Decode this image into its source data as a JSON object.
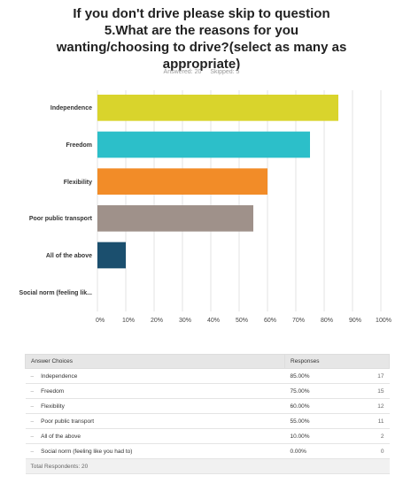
{
  "chart_data": {
    "type": "bar",
    "orientation": "horizontal",
    "title": "If you don't drive please skip to question 5.What are the reasons for you wanting/choosing to drive?(select as many as appropriate)",
    "answered": "Answered: 20",
    "skipped": "Skipped: 5",
    "categories": [
      "Independence",
      "Freedom",
      "Flexibility",
      "Poor public transport",
      "All of the above",
      "Social norm (feeling lik..."
    ],
    "values": [
      85,
      75,
      60,
      55,
      10,
      0
    ],
    "colors": [
      "#d9d42c",
      "#2cbfc9",
      "#f28c28",
      "#9f918a",
      "#1b4f6e",
      "#888888"
    ],
    "xlim": [
      0,
      100
    ],
    "xticks": [
      {
        "value": 0,
        "label": "0%"
      },
      {
        "value": 10,
        "label": "10%"
      },
      {
        "value": 20,
        "label": "20%"
      },
      {
        "value": 30,
        "label": "30%"
      },
      {
        "value": 40,
        "label": "40%"
      },
      {
        "value": 50,
        "label": "50%"
      },
      {
        "value": 60,
        "label": "60%"
      },
      {
        "value": 70,
        "label": "70%"
      },
      {
        "value": 80,
        "label": "80%"
      },
      {
        "value": 90,
        "label": "90%"
      },
      {
        "value": 100,
        "label": "100%"
      }
    ],
    "grid": true
  },
  "table": {
    "headers": [
      "Answer Choices",
      "Responses"
    ],
    "rows": [
      [
        "Independence",
        "85.00%",
        17
      ],
      [
        "Freedom",
        "75.00%",
        15
      ],
      [
        "Flexibility",
        "60.00%",
        12
      ],
      [
        "Poor public transport",
        "55.00%",
        11
      ],
      [
        "All of the above",
        "10.00%",
        2
      ],
      [
        "Social norm (feeling like you had to)",
        "0.00%",
        0
      ]
    ],
    "footer": "Total Respondents: 20"
  }
}
